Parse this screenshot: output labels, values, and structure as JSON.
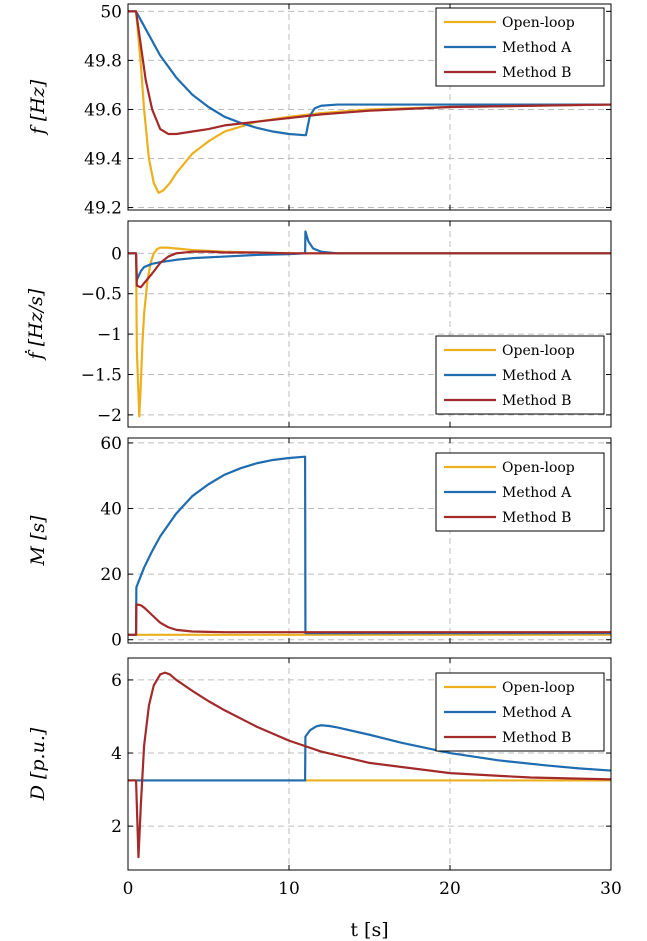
{
  "colors": {
    "open_loop": "#ECB01F",
    "method_a": "#1F6CB0",
    "method_b": "#A32A2A"
  },
  "x_axis": {
    "label": "t [s]",
    "ticks": [
      0,
      10,
      20,
      30
    ],
    "range": [
      0,
      30
    ]
  },
  "chart_data": [
    {
      "type": "line",
      "ylabel": "f [Hz]",
      "ylim": [
        49.19,
        50.03
      ],
      "yticks": [
        49.2,
        49.4,
        49.6,
        49.8,
        50
      ],
      "ytick_labels": [
        "49.2",
        "49.4",
        "49.6",
        "49.8",
        "50"
      ],
      "grid": true,
      "legend_position": "top-right",
      "series": [
        {
          "name": "Open-loop",
          "color_key": "open_loop",
          "x": [
            0,
            0.5,
            0.8,
            1.0,
            1.3,
            1.6,
            1.9,
            2.2,
            2.6,
            3,
            4,
            5,
            6,
            8,
            10,
            12,
            15,
            20,
            25,
            30
          ],
          "y": [
            50,
            50,
            49.78,
            49.6,
            49.4,
            49.3,
            49.26,
            49.27,
            49.3,
            49.34,
            49.42,
            49.47,
            49.51,
            49.55,
            49.57,
            49.585,
            49.6,
            49.61,
            49.615,
            49.62
          ]
        },
        {
          "name": "Method A",
          "color_key": "method_a",
          "x": [
            0,
            0.5,
            1,
            1.5,
            2,
            3,
            4,
            5,
            6,
            7,
            8,
            9,
            10,
            11,
            11.05,
            11.3,
            11.6,
            12,
            13,
            15,
            20,
            25,
            30
          ],
          "y": [
            50,
            50,
            49.94,
            49.88,
            49.82,
            49.73,
            49.66,
            49.61,
            49.57,
            49.545,
            49.525,
            49.51,
            49.5,
            49.495,
            49.495,
            49.575,
            49.605,
            49.615,
            49.62,
            49.62,
            49.62,
            49.62,
            49.62
          ]
        },
        {
          "name": "Method B",
          "color_key": "method_b",
          "x": [
            0,
            0.5,
            0.8,
            1.1,
            1.5,
            2.0,
            2.5,
            3,
            4,
            5,
            6,
            8,
            10,
            12,
            15,
            20,
            25,
            30
          ],
          "y": [
            50,
            50,
            49.86,
            49.72,
            49.6,
            49.52,
            49.5,
            49.5,
            49.51,
            49.52,
            49.535,
            49.55,
            49.565,
            49.58,
            49.595,
            49.61,
            49.615,
            49.62
          ]
        }
      ]
    },
    {
      "type": "line",
      "ylabel": "ḟ [Hz/s]",
      "ylim": [
        -2.15,
        0.4
      ],
      "yticks": [
        0,
        -0.5,
        -1,
        -1.5,
        -2
      ],
      "ytick_labels": [
        "0",
        "−0.5",
        "−1",
        "−1.5",
        "−2"
      ],
      "grid": true,
      "legend_position": "bottom-right",
      "series": [
        {
          "name": "Open-loop",
          "color_key": "open_loop",
          "x": [
            0,
            0.5,
            0.55,
            0.7,
            0.8,
            0.9,
            1.0,
            1.2,
            1.4,
            1.6,
            1.8,
            2.0,
            2.5,
            3,
            4,
            5,
            6,
            8,
            10,
            15,
            20,
            30
          ],
          "y": [
            0,
            0,
            -1.2,
            -2.02,
            -1.6,
            -1.1,
            -0.75,
            -0.35,
            -0.12,
            0.0,
            0.05,
            0.07,
            0.07,
            0.06,
            0.04,
            0.03,
            0.02,
            0.01,
            0.0,
            0,
            0,
            0
          ]
        },
        {
          "name": "Method A",
          "color_key": "method_a",
          "x": [
            0,
            0.5,
            0.55,
            0.8,
            1.0,
            1.5,
            2,
            3,
            4,
            6,
            8,
            10,
            11,
            11.02,
            11.2,
            11.5,
            12,
            13,
            15,
            20,
            30
          ],
          "y": [
            0,
            0,
            -0.33,
            -0.22,
            -0.17,
            -0.13,
            -0.11,
            -0.08,
            -0.06,
            -0.04,
            -0.02,
            -0.01,
            0,
            0.27,
            0.15,
            0.06,
            0.02,
            0.0,
            0,
            0,
            0
          ]
        },
        {
          "name": "Method B",
          "color_key": "method_b",
          "x": [
            0,
            0.5,
            0.55,
            0.8,
            1.0,
            1.5,
            2.0,
            2.5,
            3,
            4,
            5,
            6,
            8,
            10,
            15,
            20,
            30
          ],
          "y": [
            0,
            0,
            -0.4,
            -0.42,
            -0.37,
            -0.25,
            -0.12,
            -0.04,
            0.0,
            0.02,
            0.02,
            0.01,
            0.01,
            0.0,
            0,
            0,
            0
          ]
        }
      ]
    },
    {
      "type": "line",
      "ylabel": "M [s]",
      "ylim": [
        -1,
        61.5
      ],
      "yticks": [
        0,
        20,
        40,
        60
      ],
      "ytick_labels": [
        "0",
        "20",
        "40",
        "60"
      ],
      "grid": true,
      "legend_position": "top-right",
      "series": [
        {
          "name": "Open-loop",
          "color_key": "open_loop",
          "x": [
            0,
            11,
            30
          ],
          "y": [
            1.5,
            1.5,
            1.5
          ]
        },
        {
          "name": "Method A",
          "color_key": "method_a",
          "x": [
            0,
            0.5,
            0.52,
            1,
            1.5,
            2,
            3,
            4,
            5,
            6,
            7,
            8,
            9,
            10,
            11,
            11.02,
            30
          ],
          "y": [
            1.5,
            1.5,
            16,
            22,
            27,
            31.5,
            38.5,
            43.8,
            47.4,
            50.3,
            52.3,
            53.8,
            54.8,
            55.4,
            55.8,
            2,
            2
          ]
        },
        {
          "name": "Method B",
          "color_key": "method_b",
          "x": [
            0,
            0.5,
            0.52,
            0.8,
            1.0,
            1.5,
            2,
            2.5,
            3,
            4,
            5,
            6,
            8,
            10,
            30
          ],
          "y": [
            1.5,
            1.5,
            10.8,
            10.5,
            9.8,
            7.5,
            5.2,
            3.8,
            3.0,
            2.5,
            2.4,
            2.3,
            2.3,
            2.3,
            2.3
          ]
        }
      ]
    },
    {
      "type": "line",
      "ylabel": "D [p.u.]",
      "ylim": [
        0.8,
        6.6
      ],
      "yticks": [
        2,
        4,
        6
      ],
      "ytick_labels": [
        "2",
        "4",
        "6"
      ],
      "grid": true,
      "legend_position": "top-right",
      "series": [
        {
          "name": "Open-loop",
          "color_key": "open_loop",
          "x": [
            0,
            11,
            30
          ],
          "y": [
            3.25,
            3.25,
            3.25
          ]
        },
        {
          "name": "Method A",
          "color_key": "method_a",
          "x": [
            0,
            11,
            11.02,
            11.3,
            11.7,
            12,
            12.5,
            13,
            15,
            17,
            20,
            23,
            26,
            28,
            30
          ],
          "y": [
            3.25,
            3.25,
            4.45,
            4.62,
            4.73,
            4.76,
            4.74,
            4.7,
            4.5,
            4.28,
            4.0,
            3.8,
            3.66,
            3.58,
            3.52
          ]
        },
        {
          "name": "Method B",
          "color_key": "method_b",
          "x": [
            0,
            0.5,
            0.65,
            0.8,
            1.0,
            1.3,
            1.6,
            2.0,
            2.3,
            2.6,
            3,
            4,
            5,
            6,
            8,
            10,
            12,
            15,
            20,
            25,
            30
          ],
          "y": [
            3.25,
            3.25,
            1.15,
            2.6,
            4.2,
            5.3,
            5.85,
            6.15,
            6.2,
            6.15,
            6.0,
            5.7,
            5.42,
            5.17,
            4.72,
            4.34,
            4.04,
            3.73,
            3.45,
            3.33,
            3.28
          ]
        }
      ]
    }
  ]
}
